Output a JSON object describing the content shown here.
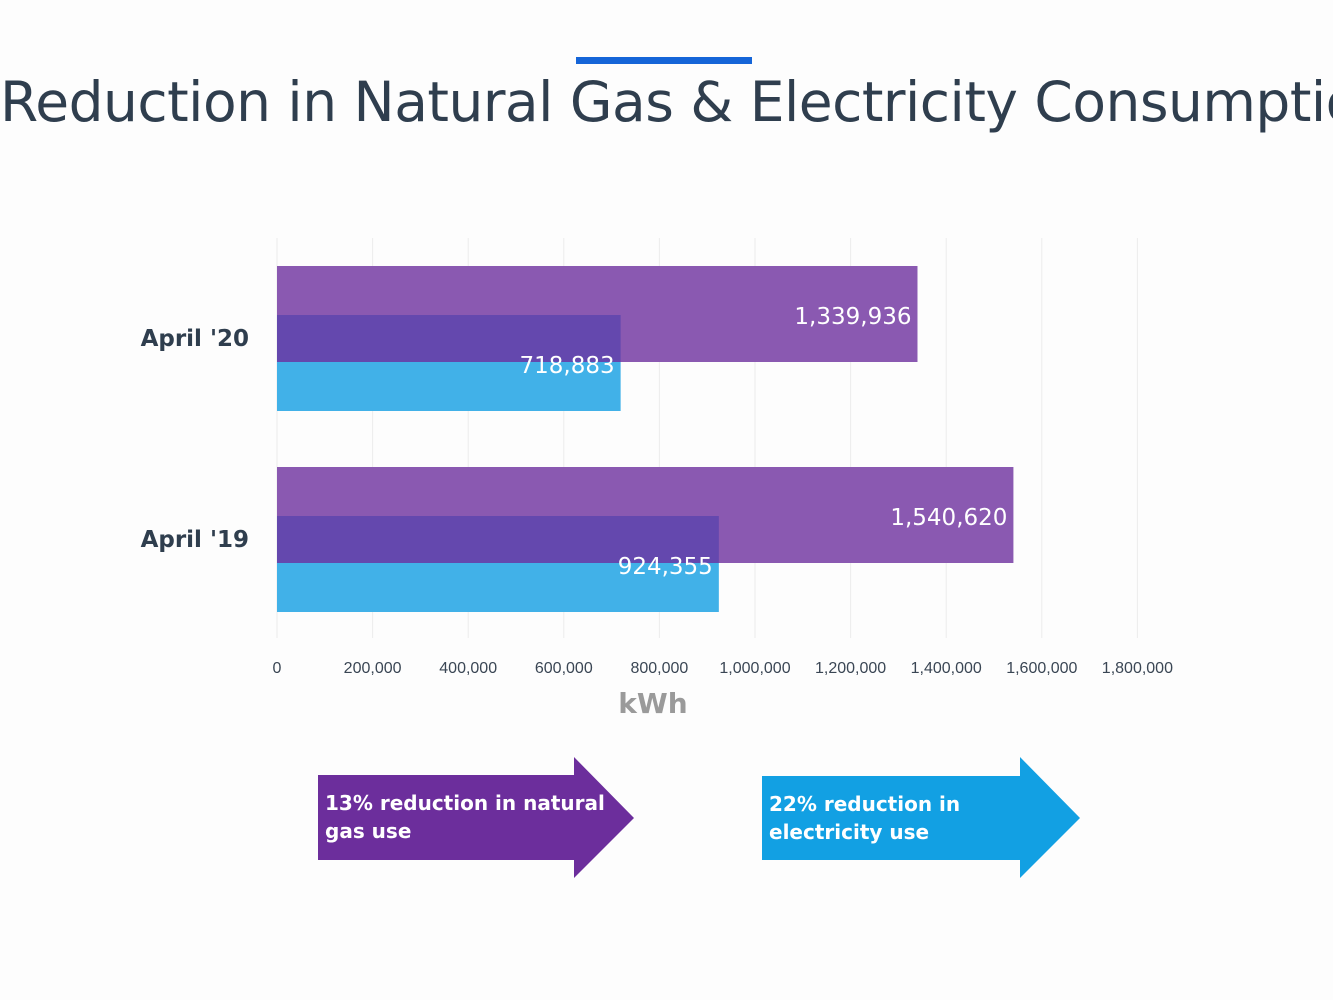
{
  "title": "Reduction in Natural Gas & Electricity Consumption",
  "colors": {
    "accent": "#1565d8",
    "gas": "#8a59b1",
    "overlap": "#6448ae",
    "electricity": "#41b1e8",
    "gas_arrow": "#6c2e9c",
    "electricity_arrow": "#12a0e3",
    "axis_label": "#9a9a9a"
  },
  "chart_data": {
    "type": "bar",
    "orientation": "horizontal",
    "categories": [
      "April '20",
      "April '19"
    ],
    "series": [
      {
        "name": "Natural gas",
        "values": [
          1339936,
          1540620
        ],
        "labels": [
          "1,339,936",
          "1,540,620"
        ]
      },
      {
        "name": "Electricity",
        "values": [
          718883,
          924355
        ],
        "labels": [
          "718,883",
          "924,355"
        ]
      }
    ],
    "xlabel": "kWh",
    "ylabel": "",
    "xlim": [
      0,
      1800000
    ],
    "ticks": [
      0,
      200000,
      400000,
      600000,
      800000,
      1000000,
      1200000,
      1400000,
      1600000,
      1800000
    ],
    "tick_labels": [
      "0",
      "200,000",
      "400,000",
      "600,000",
      "800,000",
      "1,000,000",
      "1,200,000",
      "1,400,000",
      "1,600,000",
      "1,800,000"
    ],
    "grid": true,
    "legend": "none"
  },
  "callouts": {
    "gas": "13% reduction in natural\ngas use",
    "electricity": "22% reduction in\nelectricity use"
  }
}
